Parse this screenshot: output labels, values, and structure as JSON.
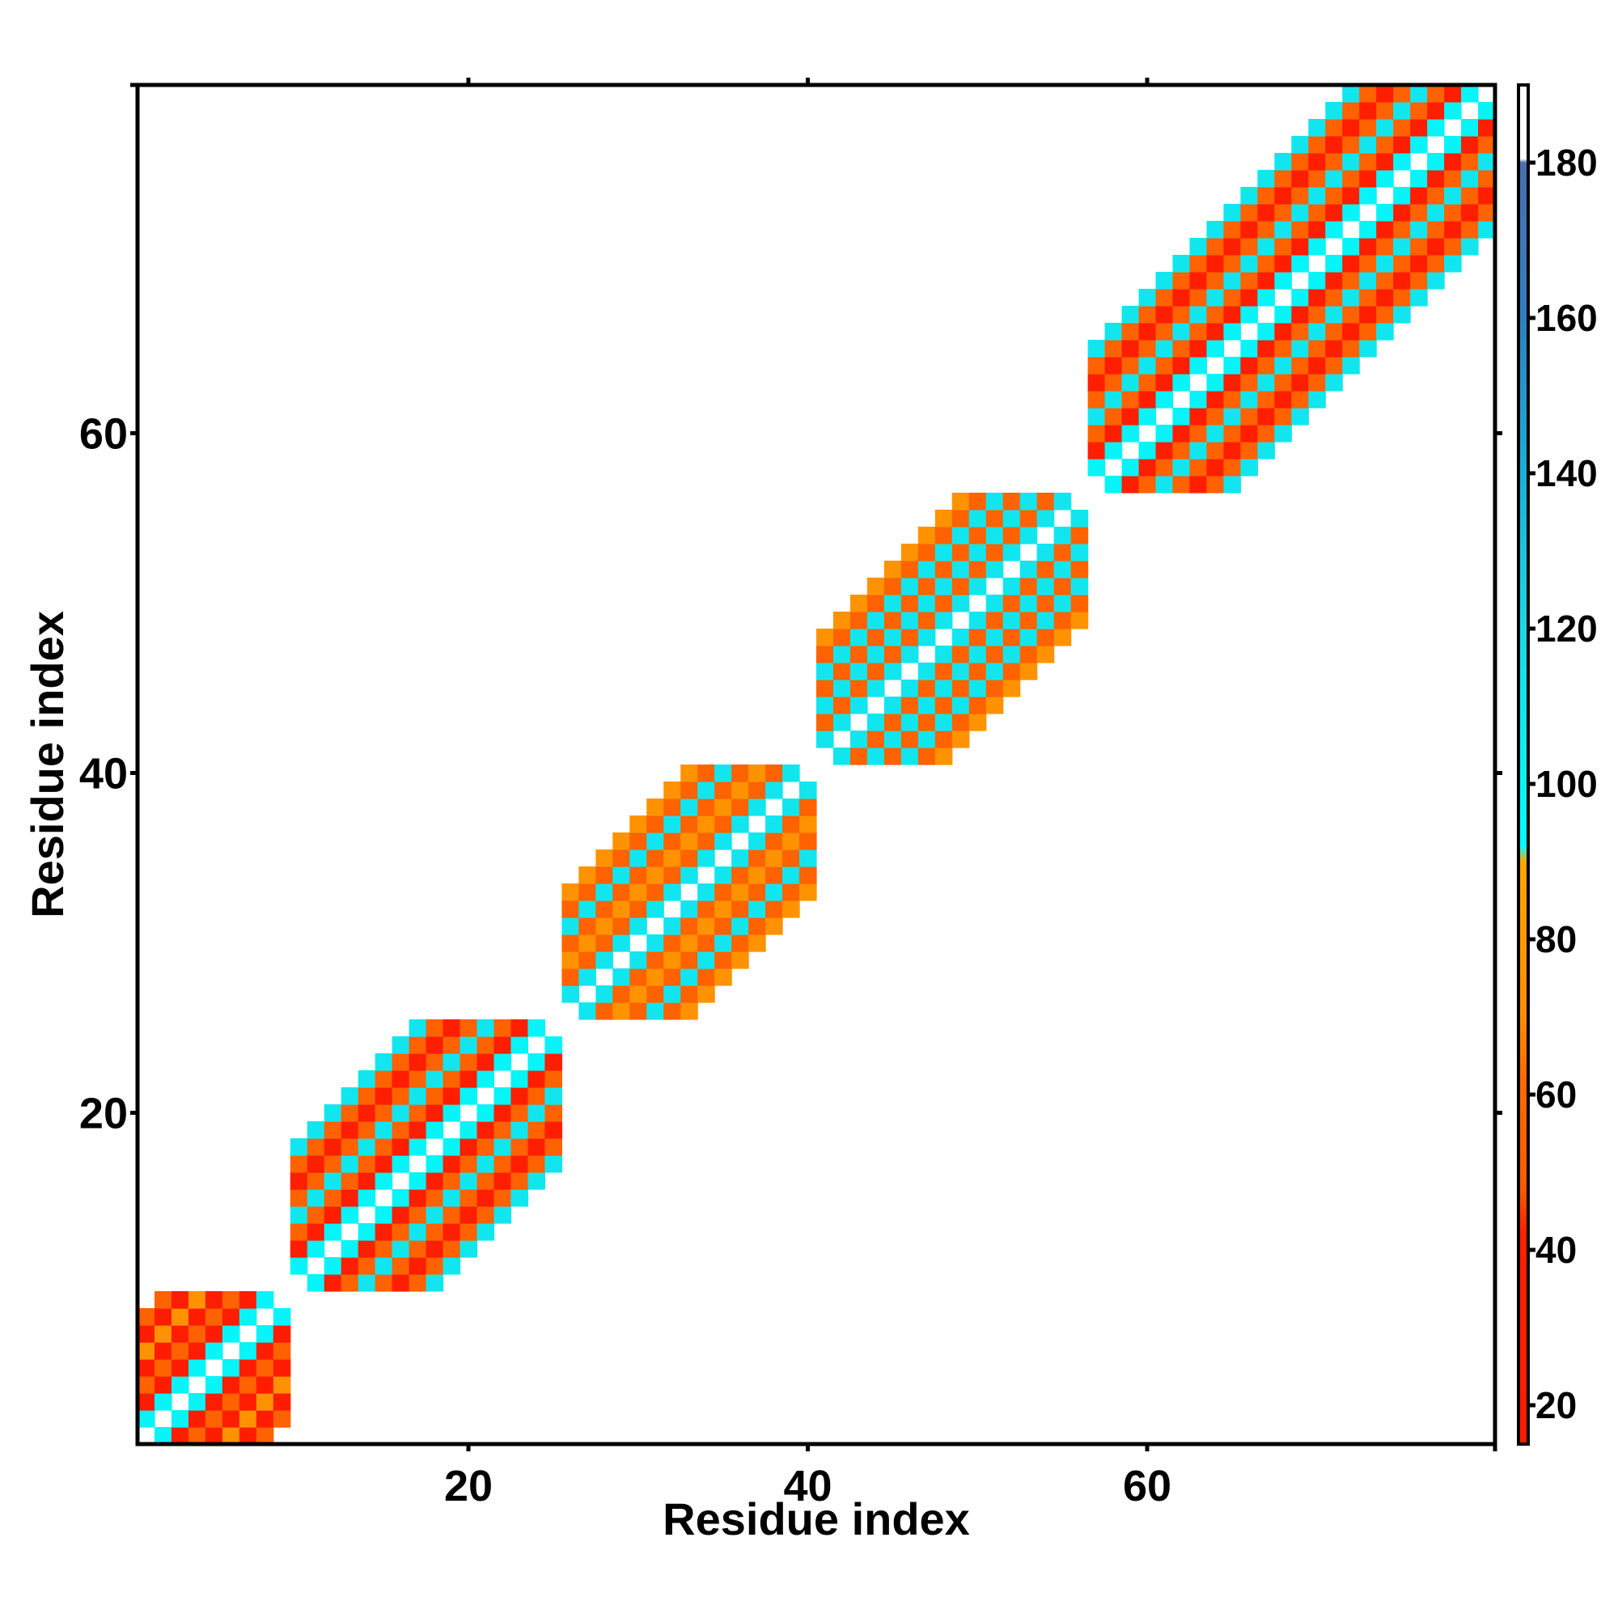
{
  "chart_data": {
    "type": "heatmap",
    "title": "",
    "xlabel": "Residue index",
    "ylabel": "Residue index",
    "xlim": [
      0.5,
      80.5
    ],
    "ylim": [
      0.5,
      80.5
    ],
    "x_ticks": [
      20,
      40,
      60
    ],
    "y_ticks": [
      20,
      40,
      60
    ],
    "colorbar": {
      "range": [
        15,
        190
      ],
      "ticks": [
        20,
        40,
        60,
        80,
        100,
        120,
        140,
        160,
        180
      ],
      "stops": [
        {
          "value": 15,
          "color": "#ff1a00"
        },
        {
          "value": 42,
          "color": "#ff2000"
        },
        {
          "value": 48,
          "color": "#ff5a00"
        },
        {
          "value": 62,
          "color": "#ff6a00"
        },
        {
          "value": 70,
          "color": "#ff8c00"
        },
        {
          "value": 90,
          "color": "#ffa500"
        },
        {
          "value": 92,
          "color": "#00ffff"
        },
        {
          "value": 120,
          "color": "#1ad8e6"
        },
        {
          "value": 140,
          "color": "#1ab0d8"
        },
        {
          "value": 160,
          "color": "#2f7fc0"
        },
        {
          "value": 180,
          "color": "#4a6fb0"
        },
        {
          "value": 180.5,
          "color": "#ffffff"
        },
        {
          "value": 190,
          "color": "#ffffff"
        }
      ]
    },
    "segments": [
      {
        "start": 1,
        "end": 9,
        "values": [
          100,
          30,
          55,
          30,
          75,
          30,
          55
        ]
      },
      {
        "start": 10,
        "end": 25,
        "values": [
          100,
          35,
          55,
          110,
          55,
          35,
          55,
          110
        ]
      },
      {
        "start": 26,
        "end": 40,
        "values": [
          110,
          55,
          75,
          55,
          110,
          55,
          75
        ]
      },
      {
        "start": 41,
        "end": 56,
        "values": [
          110,
          55,
          110,
          55,
          110,
          55,
          75
        ]
      },
      {
        "start": 57,
        "end": 80,
        "values": [
          100,
          35,
          55,
          110,
          55,
          35,
          55,
          110
        ]
      }
    ]
  },
  "colorbar_labels": [
    "20",
    "40",
    "60",
    "80",
    "100",
    "120",
    "140",
    "160",
    "180"
  ],
  "x_tick_labels": [
    "20",
    "40",
    "60"
  ],
  "y_tick_labels": [
    "20",
    "40",
    "60"
  ]
}
